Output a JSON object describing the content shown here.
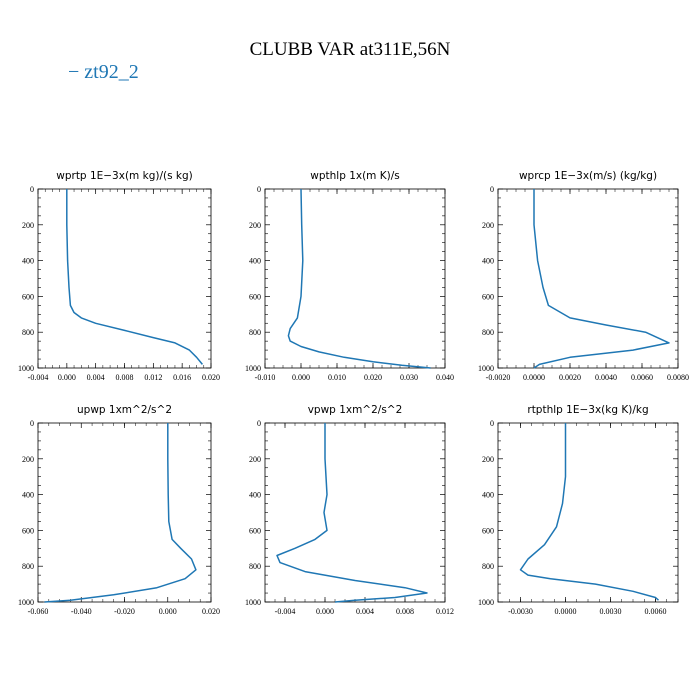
{
  "figure": {
    "title": "CLUBB VAR at311E,56N",
    "legend_label": "− zt92_2",
    "line_color": "#1f77b4"
  },
  "chart_data": [
    {
      "type": "line",
      "title": "wprtp  1E−3x(m kg)/(s kg)",
      "xlim": [
        -0.004,
        0.02
      ],
      "ylim": [
        1000,
        0
      ],
      "xticks": [
        "-0.004",
        "0.000",
        "0.004",
        "0.008",
        "0.012",
        "0.016",
        "0.020"
      ],
      "xtick_values": [
        -0.004,
        0.0,
        0.004,
        0.008,
        0.012,
        0.016,
        0.02
      ],
      "yticks": [
        "0",
        "200",
        "400",
        "600",
        "800",
        "1000"
      ],
      "series": [
        {
          "x": [
            0.0,
            0.0,
            0.0001,
            0.0003,
            0.0005,
            0.001,
            0.002,
            0.004,
            0.008,
            0.012,
            0.015,
            0.017,
            0.018,
            0.0188
          ],
          "y": [
            0,
            200,
            400,
            550,
            650,
            690,
            720,
            750,
            790,
            830,
            860,
            900,
            940,
            980
          ]
        }
      ]
    },
    {
      "type": "line",
      "title": "wpthlp  1x(m K)/s",
      "xlim": [
        -0.01,
        0.04
      ],
      "ylim": [
        1000,
        0
      ],
      "xticks": [
        "-0.010",
        "0.000",
        "0.010",
        "0.020",
        "0.030",
        "0.040"
      ],
      "xtick_values": [
        -0.01,
        0.0,
        0.01,
        0.02,
        0.03,
        0.04
      ],
      "yticks": [
        "0",
        "200",
        "400",
        "600",
        "800",
        "1000"
      ],
      "series": [
        {
          "x": [
            0.0,
            0.0002,
            0.0005,
            0.0,
            -0.001,
            -0.003,
            -0.0035,
            -0.003,
            0.0,
            0.005,
            0.012,
            0.02,
            0.028,
            0.036
          ],
          "y": [
            0,
            200,
            400,
            600,
            720,
            780,
            820,
            850,
            880,
            910,
            940,
            965,
            985,
            1000
          ]
        }
      ]
    },
    {
      "type": "line",
      "title": "wprcp  1E−3x(m/s) (kg/kg)",
      "xlim": [
        -0.002,
        0.008
      ],
      "ylim": [
        1000,
        0
      ],
      "xticks": [
        "-0.0020",
        "0.0000",
        "0.0020",
        "0.0040",
        "0.0060",
        "0.0080"
      ],
      "xtick_values": [
        -0.002,
        0.0,
        0.002,
        0.004,
        0.006,
        0.008
      ],
      "yticks": [
        "0",
        "200",
        "400",
        "600",
        "800",
        "1000"
      ],
      "series": [
        {
          "x": [
            0.0,
            0.0,
            0.0002,
            0.0005,
            0.0008,
            0.002,
            0.004,
            0.0062,
            0.0075,
            0.0055,
            0.002,
            0.0003,
            0.0
          ],
          "y": [
            0,
            200,
            400,
            550,
            650,
            720,
            760,
            800,
            860,
            900,
            940,
            980,
            1000
          ]
        }
      ]
    },
    {
      "type": "line",
      "title": "upwp  1xm^2/s^2",
      "xlim": [
        -0.06,
        0.02
      ],
      "ylim": [
        1000,
        0
      ],
      "xticks": [
        "-0.060",
        "-0.040",
        "-0.020",
        "0.000",
        "0.020"
      ],
      "xtick_values": [
        -0.06,
        -0.04,
        -0.02,
        0.0,
        0.02
      ],
      "yticks": [
        "0",
        "200",
        "400",
        "600",
        "800",
        "1000"
      ],
      "series": [
        {
          "x": [
            0.0,
            0.0,
            0.0002,
            0.0005,
            0.002,
            0.006,
            0.011,
            0.013,
            0.008,
            -0.005,
            -0.025,
            -0.045,
            -0.057
          ],
          "y": [
            0,
            200,
            400,
            550,
            650,
            700,
            760,
            820,
            870,
            920,
            960,
            990,
            1000
          ]
        }
      ]
    },
    {
      "type": "line",
      "title": "vpwp  1xm^2/s^2",
      "xlim": [
        -0.006,
        0.012
      ],
      "ylim": [
        1000,
        0
      ],
      "xticks": [
        "-0.004",
        "0.000",
        "0.004",
        "0.008",
        "0.012"
      ],
      "xtick_values": [
        -0.004,
        0.0,
        0.004,
        0.008,
        0.012
      ],
      "yticks": [
        "0",
        "200",
        "400",
        "600",
        "800",
        "1000"
      ],
      "series": [
        {
          "x": [
            0.0,
            0.0,
            0.0002,
            -0.0001,
            0.0002,
            -0.001,
            -0.003,
            -0.0048,
            -0.0045,
            -0.002,
            0.003,
            0.008,
            0.0102,
            0.007,
            0.003,
            0.001
          ],
          "y": [
            0,
            200,
            400,
            500,
            600,
            650,
            700,
            740,
            780,
            830,
            880,
            920,
            950,
            975,
            990,
            1000
          ]
        }
      ]
    },
    {
      "type": "line",
      "title": "rtpthlp  1E−3x(kg K)/kg",
      "xlim": [
        -0.0045,
        0.0075
      ],
      "ylim": [
        1000,
        0
      ],
      "xticks": [
        "-0.0030",
        "0.0000",
        "0.0030",
        "0.0060"
      ],
      "xtick_values": [
        -0.003,
        0.0,
        0.003,
        0.006
      ],
      "yticks": [
        "0",
        "200",
        "400",
        "600",
        "800",
        "1000"
      ],
      "series": [
        {
          "x": [
            0.0,
            0.0,
            -0.0002,
            -0.0006,
            -0.0014,
            -0.0025,
            -0.003,
            -0.0025,
            -0.001,
            0.002,
            0.0045,
            0.006,
            0.0062
          ],
          "y": [
            0,
            300,
            450,
            580,
            680,
            760,
            820,
            850,
            870,
            900,
            940,
            975,
            990
          ]
        }
      ]
    }
  ]
}
